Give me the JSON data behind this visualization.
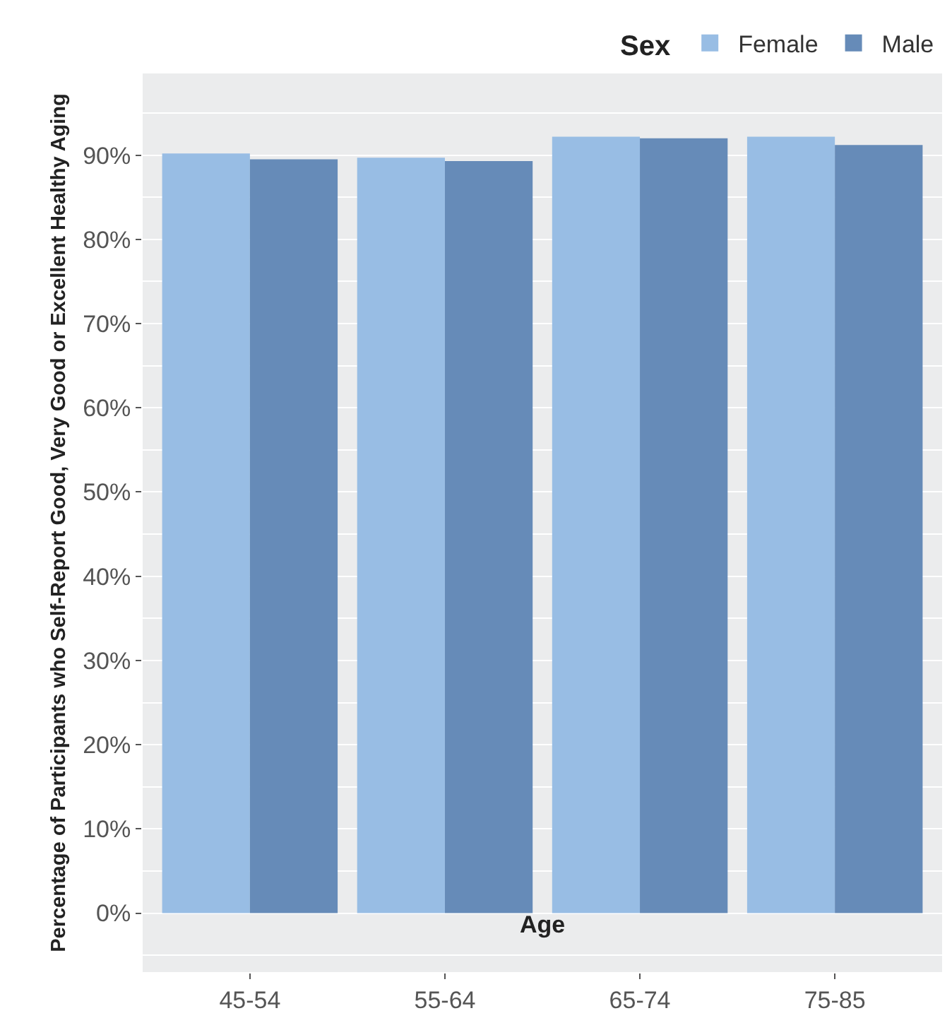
{
  "chart_data": {
    "type": "bar",
    "xlabel": "Age",
    "ylabel": "Percentage of Participants who Self-Report Good, Very Good or Excellent Healthy Aging",
    "legend_title": "Sex",
    "categories": [
      "45-54",
      "55-64",
      "65-74",
      "75-85"
    ],
    "series": [
      {
        "name": "Female",
        "color": "#98bde4",
        "values": [
          90.2,
          89.7,
          92.2,
          92.2
        ]
      },
      {
        "name": "Male",
        "color": "#668bb8",
        "values": [
          89.5,
          89.3,
          92.0,
          91.2
        ]
      }
    ],
    "ylim": [
      -7,
      99.7
    ],
    "yticks": [
      {
        "value": 0,
        "label": "0%"
      },
      {
        "value": 10,
        "label": "10%"
      },
      {
        "value": 20,
        "label": "20%"
      },
      {
        "value": 30,
        "label": "30%"
      },
      {
        "value": 40,
        "label": "40%"
      },
      {
        "value": 50,
        "label": "50%"
      },
      {
        "value": 60,
        "label": "60%"
      },
      {
        "value": 70,
        "label": "70%"
      },
      {
        "value": 80,
        "label": "80%"
      },
      {
        "value": 90,
        "label": "90%"
      }
    ],
    "grid": "y",
    "legend": "top right"
  }
}
